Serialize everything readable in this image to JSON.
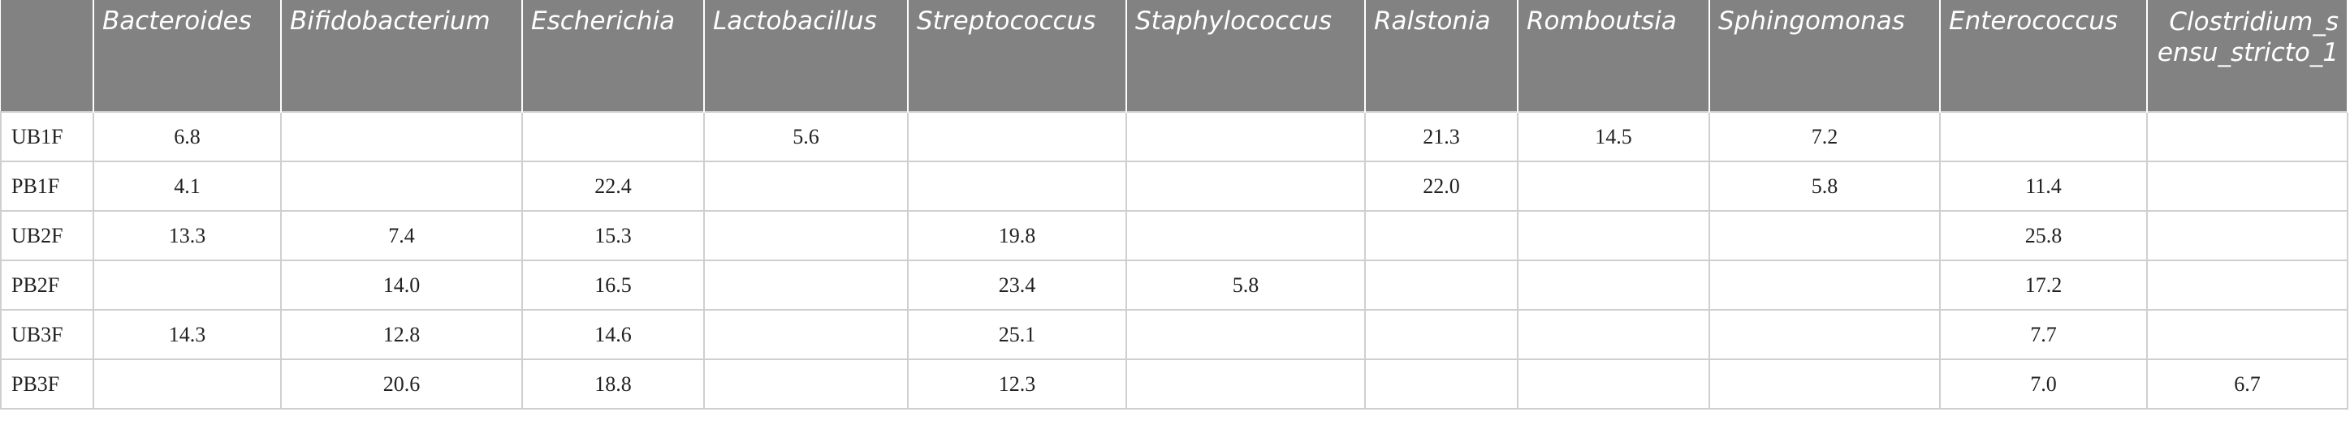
{
  "table": {
    "columns": [
      null,
      "Bacteroides",
      "Bifidobacterium",
      "Escherichia",
      "Lactobacillus",
      "Streptococcus",
      "Staphylococcus",
      "Ralstonia",
      "Romboutsia",
      "Sphingomonas",
      "Enterococcus",
      "Clostridium_sensu_stricto_1"
    ],
    "rows": [
      [
        "UB1F",
        "6.8",
        null,
        null,
        "5.6",
        null,
        null,
        "21.3",
        "14.5",
        "7.2",
        null,
        null
      ],
      [
        "PB1F",
        "4.1",
        null,
        "22.4",
        null,
        null,
        null,
        "22.0",
        null,
        "5.8",
        "11.4",
        null
      ],
      [
        "UB2F",
        "13.3",
        "7.4",
        "15.3",
        null,
        "19.8",
        null,
        null,
        null,
        null,
        "25.8",
        null
      ],
      [
        "PB2F",
        null,
        "14.0",
        "16.5",
        null,
        "23.4",
        "5.8",
        null,
        null,
        null,
        "17.2",
        null
      ],
      [
        "UB3F",
        "14.3",
        "12.8",
        "14.6",
        null,
        "25.1",
        null,
        null,
        null,
        null,
        "7.7",
        null
      ],
      [
        "PB3F",
        null,
        "20.6",
        "18.8",
        null,
        "12.3",
        null,
        null,
        null,
        null,
        "7.0",
        "6.7"
      ]
    ]
  }
}
